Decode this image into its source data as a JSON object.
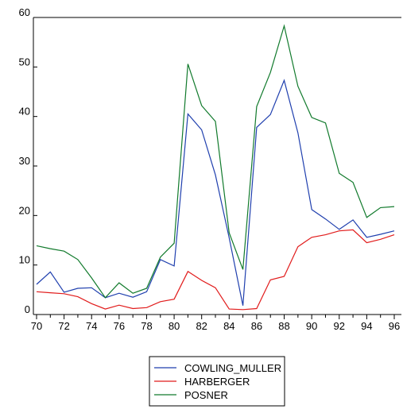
{
  "chart_data": {
    "type": "line",
    "title": "",
    "xlabel": "",
    "ylabel": "",
    "x": [
      "70",
      "71",
      "72",
      "73",
      "74",
      "75",
      "76",
      "77",
      "78",
      "79",
      "80",
      "81",
      "82",
      "83",
      "84",
      "85",
      "86",
      "87",
      "88",
      "89",
      "90",
      "91",
      "92",
      "93",
      "94",
      "95",
      "96"
    ],
    "xlim": [
      70,
      96.5
    ],
    "ylim": [
      0,
      60
    ],
    "x_ticks": [
      "70",
      "72",
      "74",
      "76",
      "78",
      "80",
      "82",
      "84",
      "86",
      "88",
      "90",
      "92",
      "94",
      "96"
    ],
    "y_ticks": [
      0,
      10,
      20,
      30,
      40,
      50,
      60
    ],
    "grid": false,
    "legend_position": "bottom-center",
    "series": [
      {
        "name": "COWLING_MULLER",
        "color": "#1f3fae",
        "values": [
          6.1,
          8.6,
          4.5,
          5.3,
          5.4,
          3.4,
          4.3,
          3.5,
          4.6,
          11.1,
          9.8,
          40.5,
          37.3,
          28.2,
          15.5,
          1.8,
          37.8,
          40.4,
          47.3,
          36.7,
          21.2,
          19.3,
          17.2,
          19.1,
          15.6,
          16.2,
          16.9
        ]
      },
      {
        "name": "HARBERGER",
        "color": "#e11b1b",
        "values": [
          4.6,
          4.4,
          4.2,
          3.6,
          2.2,
          1.1,
          1.9,
          1.2,
          1.4,
          2.6,
          3.1,
          8.7,
          6.9,
          5.4,
          1.1,
          1.0,
          1.2,
          7.0,
          7.7,
          13.7,
          15.6,
          16.1,
          16.9,
          17.1,
          14.5,
          15.2,
          16.1
        ]
      },
      {
        "name": "POSNER",
        "color": "#117a2c",
        "values": [
          13.9,
          13.3,
          12.8,
          11.1,
          7.4,
          3.4,
          6.4,
          4.3,
          5.3,
          11.6,
          14.4,
          50.6,
          42.2,
          39.0,
          16.5,
          9.1,
          42.0,
          48.9,
          58.3,
          46.1,
          39.8,
          38.7,
          28.5,
          26.7,
          19.6,
          21.6,
          21.8
        ]
      }
    ]
  }
}
